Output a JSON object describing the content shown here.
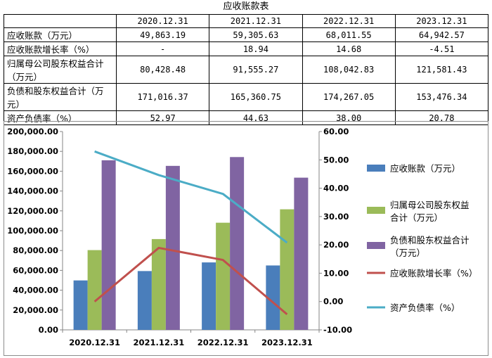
{
  "table": {
    "title": "应收账款表",
    "columns": [
      "2020.12.31",
      "2021.12.31",
      "2022.12.31",
      "2023.12.31"
    ],
    "rows": [
      {
        "label": "应收账款（万元）",
        "values": [
          "49,863.19",
          "59,305.63",
          "68,011.55",
          "64,942.57"
        ]
      },
      {
        "label": "应收账款增长率（%）",
        "values": [
          "-",
          "18.94",
          "14.68",
          "-4.51"
        ]
      },
      {
        "label": "归属母公司股东权益合计（万元）",
        "values": [
          "80,428.48",
          "91,555.27",
          "108,042.83",
          "121,581.43"
        ]
      },
      {
        "label": "负债和股东权益合计（万元）",
        "values": [
          "171,016.37",
          "165,360.75",
          "174,267.05",
          "153,476.34"
        ]
      },
      {
        "label": "资产负债率（%）",
        "values": [
          "52.97",
          "44.63",
          "38.00",
          "20.78"
        ]
      }
    ]
  },
  "chart_data": {
    "type": "bar",
    "categories": [
      "2020.12.31",
      "2021.12.31",
      "2022.12.31",
      "2023.12.31"
    ],
    "series": [
      {
        "name": "应收账款（万元）",
        "kind": "bar",
        "axis": "left",
        "color": "#4a7ebb",
        "values": [
          49863.19,
          59305.63,
          68011.55,
          64942.57
        ]
      },
      {
        "name": "归属母公司股东权益合计（万元）",
        "kind": "bar",
        "axis": "left",
        "color": "#9bbb59",
        "values": [
          80428.48,
          91555.27,
          108042.83,
          121581.43
        ]
      },
      {
        "name": "负债和股东权益合计（万元）",
        "kind": "bar",
        "axis": "left",
        "color": "#8064a2",
        "values": [
          171016.37,
          165360.75,
          174267.05,
          153476.34
        ]
      },
      {
        "name": "应收账款增长率（%）",
        "kind": "line",
        "axis": "right",
        "color": "#c0504d",
        "values": [
          0,
          18.94,
          14.68,
          -4.51
        ]
      },
      {
        "name": "资产负债率（%）",
        "kind": "line",
        "axis": "right",
        "color": "#4bacc6",
        "values": [
          52.97,
          44.63,
          38.0,
          20.78
        ]
      }
    ],
    "left_axis": {
      "min": 0,
      "max": 200000,
      "step": 20000,
      "tick_labels": [
        "0.00",
        "20,000.00",
        "40,000.00",
        "60,000.00",
        "80,000.00",
        "100,000.00",
        "120,000.00",
        "140,000.00",
        "160,000.00",
        "180,000.00",
        "200,000.00"
      ]
    },
    "right_axis": {
      "min": -10,
      "max": 60,
      "step": 10,
      "tick_labels": [
        "-10.00",
        "0.00",
        "10.00",
        "20.00",
        "30.00",
        "40.00",
        "50.00",
        "60.00"
      ]
    },
    "legend": [
      {
        "lines": [
          "应收账款（万元）"
        ],
        "kind": "bar",
        "color": "#4a7ebb"
      },
      {
        "lines": [
          "归属母公司股东权益",
          "合计（万元）"
        ],
        "kind": "bar",
        "color": "#9bbb59"
      },
      {
        "lines": [
          "负债和股东权益合计",
          "（万元）"
        ],
        "kind": "bar",
        "color": "#8064a2"
      },
      {
        "lines": [
          "应收账款增长率（%）"
        ],
        "kind": "line",
        "color": "#c0504d"
      },
      {
        "lines": [
          "资产负债率（%）"
        ],
        "kind": "line",
        "color": "#4bacc6"
      }
    ],
    "legend_position": "right",
    "grid": false
  }
}
